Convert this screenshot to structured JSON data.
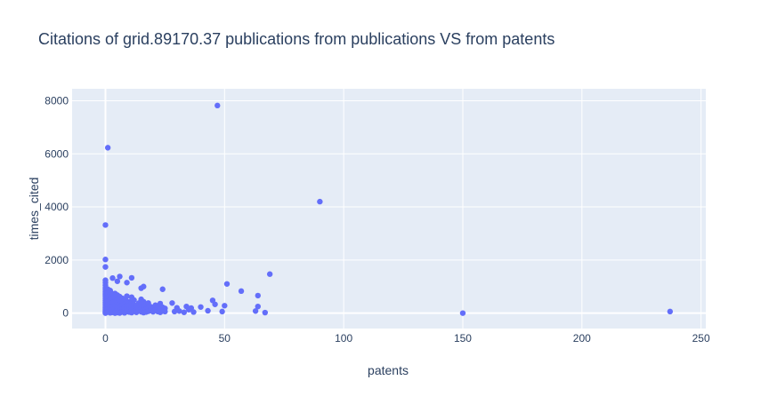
{
  "chart_data": {
    "type": "scatter",
    "title": "Citations of grid.89170.37 publications from publications VS from patents",
    "xlabel": "patents",
    "ylabel": "times_cited",
    "xlim": [
      -14,
      252
    ],
    "ylim": [
      -580,
      8450
    ],
    "x_ticks": [
      0,
      50,
      100,
      150,
      200,
      250
    ],
    "y_ticks": [
      0,
      2000,
      4000,
      6000,
      8000
    ],
    "x_tick_labels": [
      "0",
      "50",
      "100",
      "150",
      "200",
      "250"
    ],
    "y_tick_labels": [
      "0",
      "2000",
      "4000",
      "6000",
      "8000"
    ],
    "grid": true,
    "marker_color": "#636efa",
    "plot_bg": "#e5ecf6",
    "series": [
      {
        "points": [
          [
            47,
            7820
          ],
          [
            1,
            6230
          ],
          [
            0,
            3320
          ],
          [
            90,
            4200
          ],
          [
            0,
            2020
          ],
          [
            0,
            1740
          ],
          [
            69,
            1470
          ],
          [
            51,
            1100
          ],
          [
            57,
            830
          ],
          [
            64,
            660
          ],
          [
            150,
            0
          ],
          [
            237,
            60
          ],
          [
            0,
            1240
          ],
          [
            0,
            1150
          ],
          [
            0,
            1050
          ],
          [
            0,
            950
          ],
          [
            0,
            880
          ],
          [
            0,
            800
          ],
          [
            0,
            720
          ],
          [
            0,
            640
          ],
          [
            0,
            560
          ],
          [
            0,
            480
          ],
          [
            0,
            400
          ],
          [
            0,
            330
          ],
          [
            0,
            260
          ],
          [
            0,
            190
          ],
          [
            0,
            130
          ],
          [
            0,
            70
          ],
          [
            0,
            20
          ],
          [
            0,
            0
          ],
          [
            1,
            900
          ],
          [
            1,
            750
          ],
          [
            1,
            600
          ],
          [
            1,
            450
          ],
          [
            1,
            300
          ],
          [
            1,
            150
          ],
          [
            1,
            40
          ],
          [
            2,
            850
          ],
          [
            2,
            700
          ],
          [
            2,
            520
          ],
          [
            2,
            380
          ],
          [
            2,
            220
          ],
          [
            2,
            90
          ],
          [
            2,
            10
          ],
          [
            3,
            1320
          ],
          [
            3,
            720
          ],
          [
            3,
            560
          ],
          [
            3,
            400
          ],
          [
            3,
            250
          ],
          [
            3,
            120
          ],
          [
            3,
            30
          ],
          [
            4,
            740
          ],
          [
            4,
            600
          ],
          [
            4,
            430
          ],
          [
            4,
            300
          ],
          [
            4,
            170
          ],
          [
            4,
            60
          ],
          [
            4,
            0
          ],
          [
            5,
            1200
          ],
          [
            5,
            680
          ],
          [
            5,
            520
          ],
          [
            5,
            380
          ],
          [
            5,
            240
          ],
          [
            5,
            110
          ],
          [
            5,
            20
          ],
          [
            6,
            1380
          ],
          [
            6,
            620
          ],
          [
            6,
            470
          ],
          [
            6,
            320
          ],
          [
            6,
            190
          ],
          [
            6,
            80
          ],
          [
            6,
            5
          ],
          [
            7,
            560
          ],
          [
            7,
            420
          ],
          [
            7,
            280
          ],
          [
            7,
            150
          ],
          [
            7,
            50
          ],
          [
            8,
            480
          ],
          [
            8,
            330
          ],
          [
            8,
            200
          ],
          [
            8,
            90
          ],
          [
            8,
            10
          ],
          [
            9,
            1150
          ],
          [
            9,
            640
          ],
          [
            9,
            450
          ],
          [
            9,
            300
          ],
          [
            9,
            160
          ],
          [
            9,
            60
          ],
          [
            10,
            420
          ],
          [
            10,
            280
          ],
          [
            10,
            140
          ],
          [
            10,
            40
          ],
          [
            11,
            1330
          ],
          [
            11,
            600
          ],
          [
            11,
            380
          ],
          [
            11,
            230
          ],
          [
            11,
            100
          ],
          [
            11,
            20
          ],
          [
            12,
            490
          ],
          [
            12,
            310
          ],
          [
            12,
            180
          ],
          [
            12,
            70
          ],
          [
            13,
            260
          ],
          [
            13,
            130
          ],
          [
            13,
            30
          ],
          [
            14,
            380
          ],
          [
            14,
            200
          ],
          [
            14,
            90
          ],
          [
            15,
            940
          ],
          [
            15,
            520
          ],
          [
            15,
            330
          ],
          [
            15,
            160
          ],
          [
            15,
            50
          ],
          [
            16,
            1000
          ],
          [
            16,
            430
          ],
          [
            16,
            240
          ],
          [
            16,
            110
          ],
          [
            16,
            20
          ],
          [
            17,
            300
          ],
          [
            17,
            140
          ],
          [
            17,
            40
          ],
          [
            18,
            380
          ],
          [
            18,
            190
          ],
          [
            18,
            70
          ],
          [
            19,
            240
          ],
          [
            19,
            100
          ],
          [
            20,
            150
          ],
          [
            20,
            50
          ],
          [
            21,
            300
          ],
          [
            21,
            120
          ],
          [
            22,
            200
          ],
          [
            22,
            60
          ],
          [
            23,
            360
          ],
          [
            23,
            150
          ],
          [
            23,
            30
          ],
          [
            24,
            900
          ],
          [
            24,
            220
          ],
          [
            24,
            80
          ],
          [
            25,
            180
          ],
          [
            25,
            60
          ],
          [
            28,
            380
          ],
          [
            29,
            60
          ],
          [
            30,
            200
          ],
          [
            31,
            80
          ],
          [
            33,
            30
          ],
          [
            34,
            250
          ],
          [
            35,
            130
          ],
          [
            36,
            190
          ],
          [
            37,
            40
          ],
          [
            40,
            230
          ],
          [
            43,
            90
          ],
          [
            45,
            480
          ],
          [
            46,
            330
          ],
          [
            49,
            60
          ],
          [
            50,
            280
          ],
          [
            63,
            80
          ],
          [
            64,
            250
          ],
          [
            67,
            20
          ]
        ]
      }
    ]
  }
}
